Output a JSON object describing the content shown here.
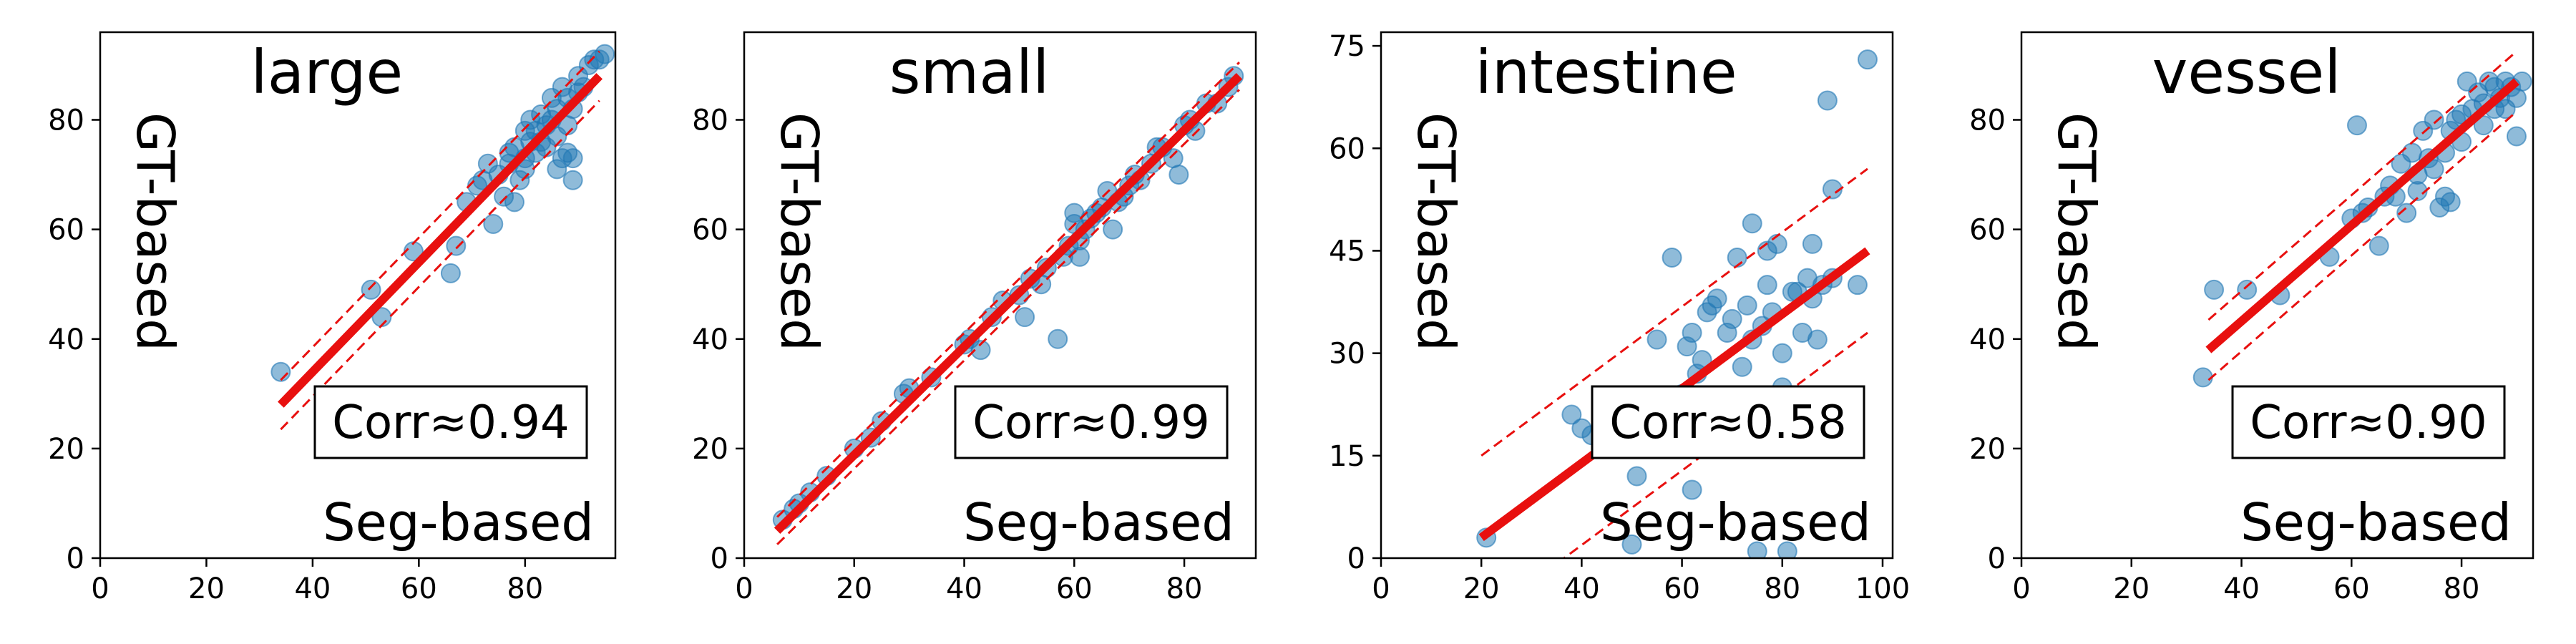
{
  "chart_data": [
    {
      "type": "scatter",
      "title": "large",
      "xlabel": "Seg-based",
      "ylabel": "GT-based",
      "corr_label": "Corr≈0.94",
      "xlim": [
        0,
        97
      ],
      "ylim": [
        0,
        96
      ],
      "xticks": [
        0,
        20,
        40,
        60,
        80
      ],
      "yticks": [
        0,
        20,
        40,
        60,
        80
      ],
      "fit": {
        "x": [
          34,
          94
        ],
        "y": [
          28,
          88
        ],
        "band": 4.5
      },
      "points": [
        [
          34,
          34
        ],
        [
          51,
          49
        ],
        [
          53,
          44
        ],
        [
          59,
          56
        ],
        [
          66,
          52
        ],
        [
          67,
          57
        ],
        [
          69,
          65
        ],
        [
          71,
          68
        ],
        [
          72,
          69
        ],
        [
          73,
          72
        ],
        [
          74,
          61
        ],
        [
          75,
          70
        ],
        [
          76,
          66
        ],
        [
          77,
          72
        ],
        [
          78,
          65
        ],
        [
          78,
          75
        ],
        [
          79,
          69
        ],
        [
          80,
          71
        ],
        [
          80,
          73
        ],
        [
          81,
          80
        ],
        [
          81,
          76
        ],
        [
          82,
          74
        ],
        [
          82,
          78
        ],
        [
          83,
          81
        ],
        [
          83,
          76
        ],
        [
          84,
          79
        ],
        [
          84,
          75
        ],
        [
          85,
          84
        ],
        [
          85,
          80
        ],
        [
          86,
          82
        ],
        [
          86,
          77
        ],
        [
          87,
          86
        ],
        [
          87,
          73
        ],
        [
          88,
          84
        ],
        [
          88,
          79
        ],
        [
          89,
          82
        ],
        [
          89,
          73
        ],
        [
          89,
          69
        ],
        [
          90,
          88
        ],
        [
          90,
          85
        ],
        [
          91,
          86
        ],
        [
          92,
          90
        ],
        [
          93,
          91
        ],
        [
          94,
          91
        ],
        [
          95,
          92
        ],
        [
          88,
          74
        ],
        [
          86,
          71
        ],
        [
          80,
          78
        ],
        [
          77,
          74
        ]
      ]
    },
    {
      "type": "scatter",
      "title": "small",
      "xlabel": "Seg-based",
      "ylabel": "GT-based",
      "corr_label": "Corr≈0.99",
      "xlim": [
        0,
        93
      ],
      "ylim": [
        0,
        96
      ],
      "xticks": [
        0,
        20,
        40,
        60,
        80
      ],
      "yticks": [
        0,
        20,
        40,
        60,
        80
      ],
      "fit": {
        "x": [
          6,
          90
        ],
        "y": [
          5,
          88
        ],
        "band": 2.5
      },
      "points": [
        [
          7,
          7
        ],
        [
          9,
          9
        ],
        [
          10,
          10
        ],
        [
          12,
          12
        ],
        [
          15,
          15
        ],
        [
          20,
          20
        ],
        [
          23,
          22
        ],
        [
          25,
          25
        ],
        [
          29,
          30
        ],
        [
          30,
          31
        ],
        [
          34,
          33
        ],
        [
          40,
          39
        ],
        [
          41,
          40
        ],
        [
          43,
          38
        ],
        [
          45,
          44
        ],
        [
          47,
          47
        ],
        [
          50,
          48
        ],
        [
          51,
          44
        ],
        [
          52,
          51
        ],
        [
          54,
          50
        ],
        [
          55,
          53
        ],
        [
          57,
          40
        ],
        [
          58,
          55
        ],
        [
          59,
          57
        ],
        [
          60,
          61
        ],
        [
          60,
          63
        ],
        [
          61,
          58
        ],
        [
          61,
          55
        ],
        [
          62,
          60
        ],
        [
          63,
          62
        ],
        [
          64,
          63
        ],
        [
          65,
          64
        ],
        [
          66,
          67
        ],
        [
          67,
          60
        ],
        [
          68,
          65
        ],
        [
          69,
          66
        ],
        [
          70,
          68
        ],
        [
          71,
          70
        ],
        [
          72,
          69
        ],
        [
          74,
          72
        ],
        [
          75,
          75
        ],
        [
          76,
          75
        ],
        [
          78,
          73
        ],
        [
          79,
          70
        ],
        [
          80,
          79
        ],
        [
          81,
          80
        ],
        [
          82,
          78
        ],
        [
          84,
          83
        ],
        [
          86,
          83
        ],
        [
          88,
          86
        ],
        [
          89,
          88
        ]
      ]
    },
    {
      "type": "scatter",
      "title": "intestine",
      "xlabel": "Seg-based",
      "ylabel": "GT-based",
      "corr_label": "Corr≈0.58",
      "xlim": [
        0,
        102
      ],
      "ylim": [
        0,
        77
      ],
      "xticks": [
        0,
        20,
        40,
        60,
        80,
        100
      ],
      "yticks": [
        0,
        15,
        30,
        45,
        60,
        75
      ],
      "fit": {
        "x": [
          20,
          97
        ],
        "y": [
          3,
          45
        ],
        "band": 12
      },
      "points": [
        [
          21,
          3
        ],
        [
          38,
          21
        ],
        [
          40,
          19
        ],
        [
          42,
          18
        ],
        [
          48,
          17
        ],
        [
          50,
          2
        ],
        [
          51,
          12
        ],
        [
          52,
          23
        ],
        [
          53,
          18
        ],
        [
          55,
          32
        ],
        [
          58,
          20
        ],
        [
          58,
          44
        ],
        [
          59,
          17
        ],
        [
          60,
          24
        ],
        [
          61,
          31
        ],
        [
          62,
          10
        ],
        [
          62,
          33
        ],
        [
          63,
          27
        ],
        [
          64,
          29
        ],
        [
          65,
          22
        ],
        [
          65,
          36
        ],
        [
          66,
          37
        ],
        [
          67,
          38
        ],
        [
          69,
          33
        ],
        [
          70,
          35
        ],
        [
          71,
          44
        ],
        [
          72,
          28
        ],
        [
          73,
          37
        ],
        [
          74,
          32
        ],
        [
          74,
          49
        ],
        [
          75,
          1
        ],
        [
          76,
          34
        ],
        [
          77,
          40
        ],
        [
          77,
          45
        ],
        [
          78,
          36
        ],
        [
          79,
          46
        ],
        [
          80,
          25
        ],
        [
          80,
          30
        ],
        [
          81,
          1
        ],
        [
          82,
          39
        ],
        [
          83,
          39
        ],
        [
          84,
          33
        ],
        [
          85,
          41
        ],
        [
          86,
          46
        ],
        [
          86,
          38
        ],
        [
          87,
          32
        ],
        [
          88,
          40
        ],
        [
          89,
          67
        ],
        [
          90,
          41
        ],
        [
          90,
          54
        ],
        [
          95,
          40
        ],
        [
          97,
          73
        ]
      ]
    },
    {
      "type": "scatter",
      "title": "vessel",
      "xlabel": "Seg-based",
      "ylabel": "GT-based",
      "corr_label": "Corr≈0.90",
      "xlim": [
        0,
        93
      ],
      "ylim": [
        0,
        96
      ],
      "xticks": [
        0,
        20,
        40,
        60,
        80
      ],
      "yticks": [
        0,
        20,
        40,
        60,
        80
      ],
      "fit": {
        "x": [
          34,
          90
        ],
        "y": [
          38,
          87
        ],
        "band": 5.5
      },
      "points": [
        [
          33,
          33
        ],
        [
          35,
          49
        ],
        [
          41,
          49
        ],
        [
          47,
          48
        ],
        [
          56,
          55
        ],
        [
          60,
          62
        ],
        [
          61,
          79
        ],
        [
          62,
          63
        ],
        [
          63,
          64
        ],
        [
          65,
          57
        ],
        [
          66,
          66
        ],
        [
          67,
          68
        ],
        [
          68,
          66
        ],
        [
          69,
          72
        ],
        [
          70,
          63
        ],
        [
          71,
          74
        ],
        [
          72,
          70
        ],
        [
          72,
          67
        ],
        [
          73,
          78
        ],
        [
          74,
          73
        ],
        [
          75,
          80
        ],
        [
          75,
          71
        ],
        [
          76,
          64
        ],
        [
          77,
          74
        ],
        [
          77,
          66
        ],
        [
          78,
          78
        ],
        [
          78,
          65
        ],
        [
          79,
          80
        ],
        [
          80,
          76
        ],
        [
          80,
          81
        ],
        [
          81,
          87
        ],
        [
          82,
          82
        ],
        [
          83,
          85
        ],
        [
          84,
          79
        ],
        [
          84,
          83
        ],
        [
          85,
          87
        ],
        [
          86,
          86
        ],
        [
          86,
          82
        ],
        [
          87,
          84
        ],
        [
          88,
          87
        ],
        [
          89,
          86
        ],
        [
          90,
          77
        ],
        [
          90,
          84
        ],
        [
          91,
          87
        ],
        [
          88,
          82
        ]
      ]
    }
  ]
}
